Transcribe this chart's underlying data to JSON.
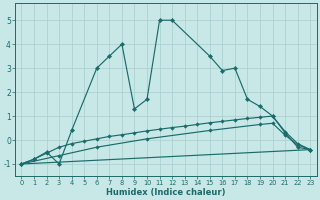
{
  "xlabel": "Humidex (Indice chaleur)",
  "background_color": "#c8e8e8",
  "line_color": "#1a6b6b",
  "xlim": [
    -0.5,
    23.5
  ],
  "ylim": [
    -1.5,
    5.7
  ],
  "yticks": [
    -1,
    0,
    1,
    2,
    3,
    4,
    5
  ],
  "xticks": [
    0,
    1,
    2,
    3,
    4,
    5,
    6,
    7,
    8,
    9,
    10,
    11,
    12,
    13,
    14,
    15,
    16,
    17,
    18,
    19,
    20,
    21,
    22,
    23
  ],
  "main_x": [
    0,
    1,
    2,
    3,
    4,
    6,
    7,
    8,
    9,
    10,
    11,
    12,
    15,
    16,
    17,
    18,
    19,
    20,
    21,
    22,
    23
  ],
  "main_y": [
    -1,
    -0.8,
    -0.5,
    -1.0,
    0.4,
    3.0,
    3.5,
    4.0,
    1.3,
    1.7,
    5.0,
    5.0,
    3.5,
    2.9,
    3.0,
    1.7,
    1.4,
    1.0,
    0.3,
    -0.3,
    -0.4
  ],
  "line2_x": [
    0,
    1,
    2,
    3,
    4,
    5,
    6,
    7,
    8,
    9,
    10,
    11,
    12,
    13,
    14,
    15,
    16,
    17,
    18,
    19,
    20,
    21,
    22,
    23
  ],
  "line2_y": [
    -1,
    -0.8,
    -0.55,
    -0.3,
    -0.15,
    -0.05,
    0.05,
    0.15,
    0.22,
    0.3,
    0.38,
    0.45,
    0.52,
    0.58,
    0.65,
    0.72,
    0.78,
    0.84,
    0.9,
    0.95,
    1.0,
    0.35,
    -0.15,
    -0.4
  ],
  "line3_x": [
    0,
    3,
    6,
    10,
    15,
    19,
    20,
    21,
    22,
    23
  ],
  "line3_y": [
    -1,
    -0.65,
    -0.3,
    0.05,
    0.4,
    0.65,
    0.7,
    0.2,
    -0.2,
    -0.4
  ],
  "line4_x": [
    0,
    23
  ],
  "line4_y": [
    -1,
    -0.4
  ]
}
